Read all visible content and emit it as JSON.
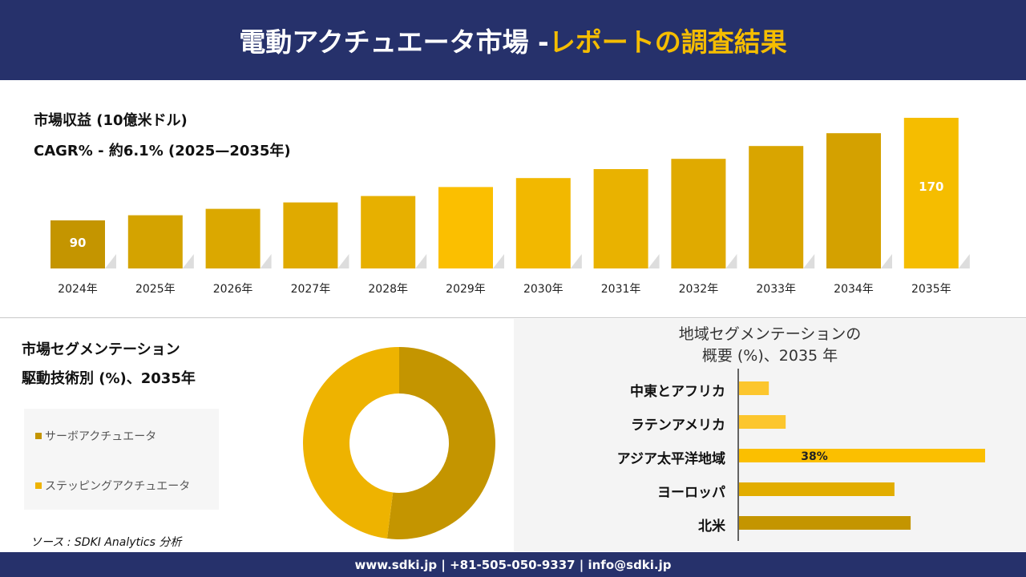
{
  "header": {
    "title_main": "電動アクチュエータ市場 -",
    "title_highlight": "レポートの調査結果"
  },
  "revenue": {
    "title": "市場収益 (10億米ドル)",
    "cagr": "CAGR% - 約6.1% (2025—2035年)"
  },
  "segment": {
    "title_line1": "市場セグメンテーション",
    "title_line2": "駆動技術別 (%)、2035年"
  },
  "region": {
    "title_line1": "地域セグメンテーションの",
    "title_line2": "概要 (%)、2035 年"
  },
  "source": "ソース : SDKI Analytics 分析",
  "footer": "www.sdki.jp | +81-505-050-9337 | info@sdki.jp",
  "colors": {
    "navy": "#26316b",
    "accent": "#f5bd00"
  },
  "chart_data": [
    {
      "type": "bar",
      "categories": [
        "2024年",
        "2025年",
        "2026年",
        "2027年",
        "2028年",
        "2029年",
        "2030年",
        "2031年",
        "2032年",
        "2033年",
        "2034年",
        "2035年"
      ],
      "values": [
        90,
        94,
        99,
        104,
        109,
        116,
        123,
        130,
        138,
        148,
        158,
        170
      ],
      "data_labels": {
        "0": "90",
        "11": "170"
      },
      "colors": [
        "#c49500",
        "#d4a300",
        "#dba800",
        "#e0aa00",
        "#e7b000",
        "#fbbf00",
        "#f2b800",
        "#e9b200",
        "#e0aa00",
        "#d9a500",
        "#d4a100",
        "#f5bd00"
      ]
    },
    {
      "type": "pie",
      "subtype": "donut",
      "labels": [
        "サーボアクチュエータ",
        "ステッピングアクチュエータ"
      ],
      "values": [
        52,
        48
      ],
      "colors": [
        "#c49500",
        "#eeb300"
      ]
    },
    {
      "type": "bar",
      "orientation": "horizontal",
      "categories": [
        "中東とアフリカ",
        "ラテンアメリカ",
        "アジア太平洋地域",
        "ヨーロッパ",
        "北米"
      ],
      "values": [
        4.6,
        7.2,
        38,
        24,
        26.5
      ],
      "data_labels": {
        "2": "38%"
      },
      "colors": [
        "#fcc62e",
        "#fcc62e",
        "#fbbf00",
        "#e2ad00",
        "#c49500"
      ]
    }
  ]
}
